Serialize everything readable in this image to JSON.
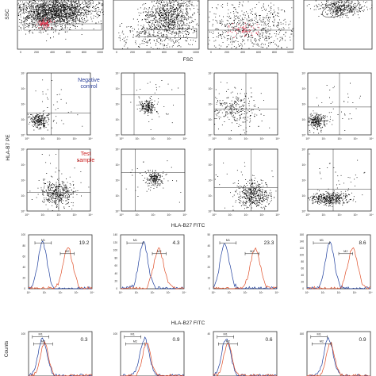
{
  "figure": {
    "scatter_top": {
      "ylabel": "SSC",
      "xlabel": "FSC",
      "xticks": [
        "0",
        "200",
        "400",
        "600",
        "800",
        "1000"
      ]
    },
    "hla_scatter": {
      "ylabel": "HLA-B7 PE",
      "xlabel": "HLA-B27 FITC",
      "decade_ticks": [
        "10⁰",
        "10¹",
        "10²",
        "10³",
        "10⁴"
      ],
      "row_labels": [
        "Negative control",
        "Test sample"
      ],
      "row_label_colors": [
        "#2a3f99",
        "#cc2222"
      ]
    },
    "histograms": {
      "ylabel": "Counts",
      "xlabel": "HLA-B27 FITC",
      "gate_labels": [
        "M1",
        "M2"
      ],
      "row1_values": [
        "19.2",
        "4.3",
        "23.3",
        "8.6"
      ],
      "row2_values": [
        "0.3",
        "0.9",
        "0.6",
        "0.9"
      ],
      "row1_yticks": [
        [
          "0",
          "20",
          "40",
          "60",
          "80",
          "100"
        ],
        [
          "0",
          "20",
          "40",
          "60",
          "80",
          "100",
          "120",
          "140"
        ],
        [
          "0",
          "10",
          "20",
          "30",
          "40",
          "50"
        ],
        [
          "0",
          "20",
          "40",
          "60",
          "80",
          "100",
          "120",
          "140",
          "160"
        ]
      ],
      "row2_ytop": [
        "100",
        "100",
        "40",
        "160"
      ],
      "negative_color": "#1f3f9e",
      "test_color": "#e0502a"
    }
  },
  "chart_data": [
    {
      "type": "scatter",
      "title": "",
      "xlabel": "FSC",
      "ylabel": "SSC",
      "xlim": [
        0,
        1000
      ],
      "panels": 4,
      "note": ""
    },
    {
      "type": "scatter",
      "xlabel": "HLA-B27 FITC",
      "ylabel": "HLA-B7 PE",
      "scale": "log",
      "xlim": [
        1,
        10000
      ],
      "ylim": [
        1,
        10000
      ],
      "rows": [
        "Negative control",
        "Test sample"
      ],
      "panels_per_row": 4
    },
    {
      "type": "line",
      "xlabel": "HLA-B27 FITC",
      "ylabel": "Counts",
      "scale": "log",
      "xlim": [
        1,
        10000
      ],
      "gates": [
        "M1",
        "M2"
      ],
      "series": [
        {
          "name": "",
          "color": "#1f3f9e"
        },
        {
          "name": "",
          "color": "#e0502a"
        }
      ],
      "row1_values": [
        19.2,
        4.3,
        23.3,
        8.6
      ],
      "row2_values": [
        0.3,
        0.9,
        0.6,
        0.9
      ]
    }
  ]
}
